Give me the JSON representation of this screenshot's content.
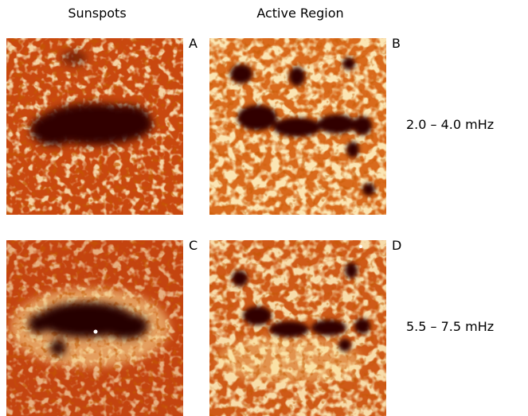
{
  "figure": {
    "column_titles": [
      "Sunspots",
      "Active Region"
    ],
    "panels": [
      "A",
      "B",
      "C",
      "D"
    ],
    "row_labels": [
      "2.0 – 4.0 mHz",
      "5.5 – 7.5 mHz"
    ]
  }
}
